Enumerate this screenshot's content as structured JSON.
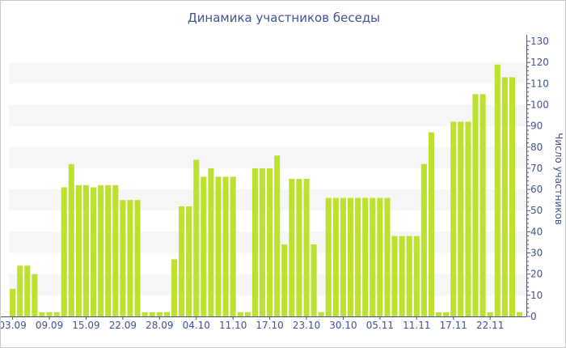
{
  "chart_data": {
    "type": "bar",
    "title": "Динамика участников беседы",
    "xlabel": "",
    "ylabel": "Число участников",
    "ylim": [
      0,
      130
    ],
    "y_ticks": [
      0,
      10,
      20,
      30,
      40,
      50,
      60,
      70,
      80,
      90,
      100,
      110,
      120,
      130
    ],
    "x_tick_labels": [
      "03.09",
      "09.09",
      "15.09",
      "22.09",
      "28.09",
      "04.10",
      "11.10",
      "17.10",
      "23.10",
      "30.10",
      "05.11",
      "11.11",
      "17.11",
      "22.11"
    ],
    "x_tick_every": 5,
    "y_axis_position": "right",
    "grid": "alternating horizontal bands",
    "color": "#bde12f",
    "values": [
      13,
      24,
      24,
      20,
      2,
      2,
      2,
      61,
      72,
      62,
      62,
      61,
      62,
      62,
      62,
      55,
      55,
      55,
      2,
      2,
      2,
      2,
      27,
      52,
      52,
      74,
      66,
      70,
      66,
      66,
      66,
      2,
      2,
      70,
      70,
      70,
      76,
      34,
      65,
      65,
      65,
      34,
      2,
      56,
      56,
      56,
      56,
      56,
      56,
      56,
      56,
      56,
      38,
      38,
      38,
      38,
      72,
      87,
      2,
      2,
      92,
      92,
      92,
      105,
      105,
      2,
      119,
      113,
      113,
      2
    ]
  }
}
